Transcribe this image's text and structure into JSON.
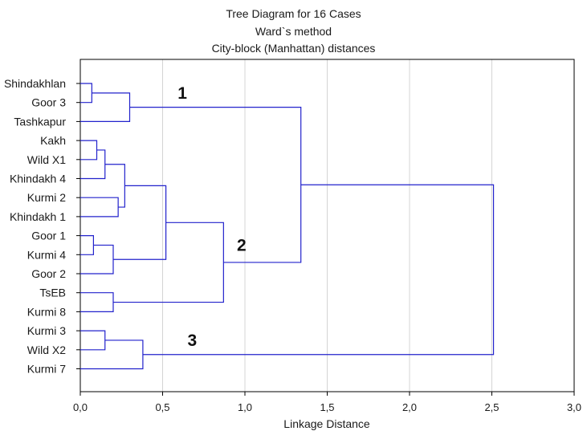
{
  "chart_data": {
    "type": "dendrogram",
    "title": "Tree Diagram for 16 Cases",
    "subtitle": [
      "Ward`s method",
      "City-block (Manhattan) distances"
    ],
    "xlabel": "Linkage Distance",
    "xlim": [
      0,
      3.0
    ],
    "xticks": [
      "0,0",
      "0,5",
      "1,0",
      "1,5",
      "2,0",
      "2,5",
      "3,0"
    ],
    "xtick_values": [
      0,
      0.5,
      1.0,
      1.5,
      2.0,
      2.5,
      3.0
    ],
    "grid": "vertical",
    "line_color": "#2222cc",
    "leaves": [
      "Shindakhlan",
      "Goor 3",
      "Tashkapur",
      "Kakh",
      "Wild X1",
      "Khindakh 4",
      "Kurmi 2",
      "Khindakh 1",
      "Goor 1",
      "Kurmi 4",
      "Goor 2",
      "TsEB",
      "Kurmi 8",
      "Kurmi 3",
      "Wild X2",
      "Kurmi 7"
    ],
    "merges": [
      {
        "a": "Shindakhlan",
        "b": "Goor 3",
        "height": 0.07
      },
      {
        "a": "Kakh",
        "b": "Wild X1",
        "height": 0.1
      },
      {
        "a": "Goor 1",
        "b": "Kurmi 4",
        "height": 0.08
      },
      {
        "a": "Kurmi 3",
        "b": "Wild X2",
        "height": 0.15
      },
      {
        "a": "{Kakh, Wild X1}",
        "b": "Khindakh 4",
        "height": 0.15
      },
      {
        "a": "Kurmi 2",
        "b": "Khindakh 1",
        "height": 0.23
      },
      {
        "a": "{Goor 1, Kurmi 4}",
        "b": "Goor 2",
        "height": 0.2
      },
      {
        "a": "TsEB",
        "b": "Kurmi 8",
        "height": 0.2
      },
      {
        "a": "{Kakh, Wild X1, Khindakh 4}",
        "b": "{Kurmi 2, Khindakh 1}",
        "height": 0.27
      },
      {
        "a": "{Shindakhlan, Goor 3}",
        "b": "Tashkapur",
        "height": 0.3
      },
      {
        "a": "{Kurmi 3, Wild X2}",
        "b": "Kurmi 7",
        "height": 0.38
      },
      {
        "a": "{Kakh … Khindakh 1}",
        "b": "{Goor 1, Kurmi 4, Goor 2}",
        "height": 0.52
      },
      {
        "a": "{Kakh … Goor 2}",
        "b": "{TsEB, Kurmi 8}",
        "height": 0.87
      },
      {
        "a": "{Shindakhlan, Goor 3, Tashkapur}",
        "b": "{Kakh … Kurmi 8}",
        "height": 1.34
      },
      {
        "a": "{Shindakhlan … Kurmi 8}",
        "b": "{Kurmi 3, Wild X2, Kurmi 7}",
        "height": 2.51
      }
    ],
    "annotations": [
      {
        "text": "1",
        "x": 0.62,
        "between_leaves": [
          "Shindakhlan",
          "Goor 3"
        ]
      },
      {
        "text": "2",
        "x": 0.98,
        "between_leaves": [
          "Goor 1",
          "Kurmi 4"
        ]
      },
      {
        "text": "3",
        "x": 0.68,
        "between_leaves": [
          "Kurmi 3",
          "Wild X2"
        ]
      }
    ]
  }
}
